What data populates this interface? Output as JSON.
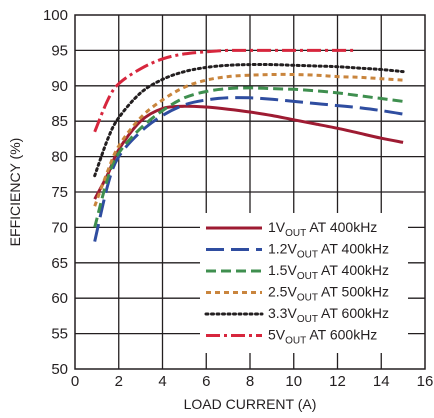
{
  "chart_data": {
    "type": "line",
    "xlabel": "LOAD CURRENT (A)",
    "ylabel": "EFFICIENCY (%)",
    "xlim": [
      0,
      16
    ],
    "ylim": [
      50,
      100
    ],
    "xticks": [
      "0",
      "2",
      "4",
      "6",
      "8",
      "10",
      "12",
      "14",
      "16"
    ],
    "yticks": [
      "50",
      "55",
      "60",
      "65",
      "70",
      "75",
      "80",
      "85",
      "90",
      "95",
      "100"
    ],
    "grid": true,
    "legend_position": "bottom-right",
    "series": [
      {
        "name": "1V_OUT AT 400kHz",
        "label_main": "1V",
        "label_sub": "OUT",
        "label_rest": " AT 400kHz",
        "color": "#9e1b32",
        "dash": "solid",
        "x": [
          0.9,
          1.5,
          2,
          3,
          4,
          5,
          6,
          7,
          8,
          9,
          10,
          11,
          12,
          13,
          14,
          15
        ],
        "y": [
          74,
          77.5,
          81,
          85,
          86.8,
          87.1,
          87,
          86.7,
          86.3,
          85.8,
          85.2,
          84.6,
          84,
          83.3,
          82.6,
          82
        ]
      },
      {
        "name": "1.2V_OUT AT 400kHz",
        "label_main": "1.2V",
        "label_sub": "OUT",
        "label_rest": " AT 400kHz",
        "color": "#2f4da0",
        "dash": "longdash",
        "x": [
          0.9,
          1.5,
          2,
          3,
          4,
          5,
          6,
          7,
          8,
          9,
          10,
          11,
          12,
          13,
          14,
          15
        ],
        "y": [
          68,
          76,
          80,
          83.5,
          85.8,
          87.3,
          88,
          88.3,
          88.3,
          88.1,
          87.8,
          87.5,
          87.2,
          86.9,
          86.5,
          86
        ]
      },
      {
        "name": "1.5V_OUT AT 400kHz",
        "label_main": "1.5V",
        "label_sub": "OUT",
        "label_rest": " AT 400kHz",
        "color": "#3f8f4f",
        "dash": "dash",
        "x": [
          0.9,
          1.5,
          2,
          3,
          4,
          5,
          6,
          7,
          8,
          9,
          10,
          11,
          12,
          13,
          14,
          15
        ],
        "y": [
          70,
          77,
          80.5,
          84,
          86.5,
          88.3,
          89.2,
          89.6,
          89.7,
          89.6,
          89.5,
          89.3,
          89,
          88.6,
          88.2,
          87.8
        ]
      },
      {
        "name": "2.5V_OUT AT 500kHz",
        "label_main": "2.5V",
        "label_sub": "OUT",
        "label_rest": " AT 500kHz",
        "color": "#c9853d",
        "dash": "shortdash",
        "x": [
          0.9,
          1.5,
          2,
          3,
          4,
          5,
          6,
          7,
          8,
          9,
          10,
          11,
          12,
          13,
          14,
          15
        ],
        "y": [
          73,
          78,
          81.5,
          85.5,
          88,
          89.8,
          90.8,
          91.3,
          91.5,
          91.6,
          91.6,
          91.5,
          91.3,
          91.2,
          91,
          90.8
        ]
      },
      {
        "name": "3.3V_OUT AT 600kHz",
        "label_main": "3.3V",
        "label_sub": "OUT",
        "label_rest": " AT 600kHz",
        "color": "#231f20",
        "dash": "dot",
        "x": [
          0.9,
          1.5,
          2,
          3,
          4,
          5,
          6,
          7,
          8,
          9,
          10,
          11,
          12,
          13,
          14,
          15
        ],
        "y": [
          77.3,
          82.5,
          85.5,
          89,
          90.9,
          92,
          92.6,
          92.9,
          93,
          93,
          92.9,
          92.8,
          92.7,
          92.5,
          92.3,
          92
        ]
      },
      {
        "name": "5V_OUT AT 600kHz",
        "label_main": "5V",
        "label_sub": "OUT",
        "label_rest": " AT 600kHz",
        "color": "#d7263d",
        "dash": "dashdot",
        "x": [
          0.9,
          1.5,
          2,
          3,
          4,
          5,
          6,
          7,
          8,
          9,
          10,
          11,
          12,
          12.8
        ],
        "y": [
          83.5,
          88,
          90.3,
          92.4,
          93.8,
          94.5,
          94.8,
          95,
          95,
          95,
          95,
          95,
          95,
          95
        ]
      }
    ]
  }
}
